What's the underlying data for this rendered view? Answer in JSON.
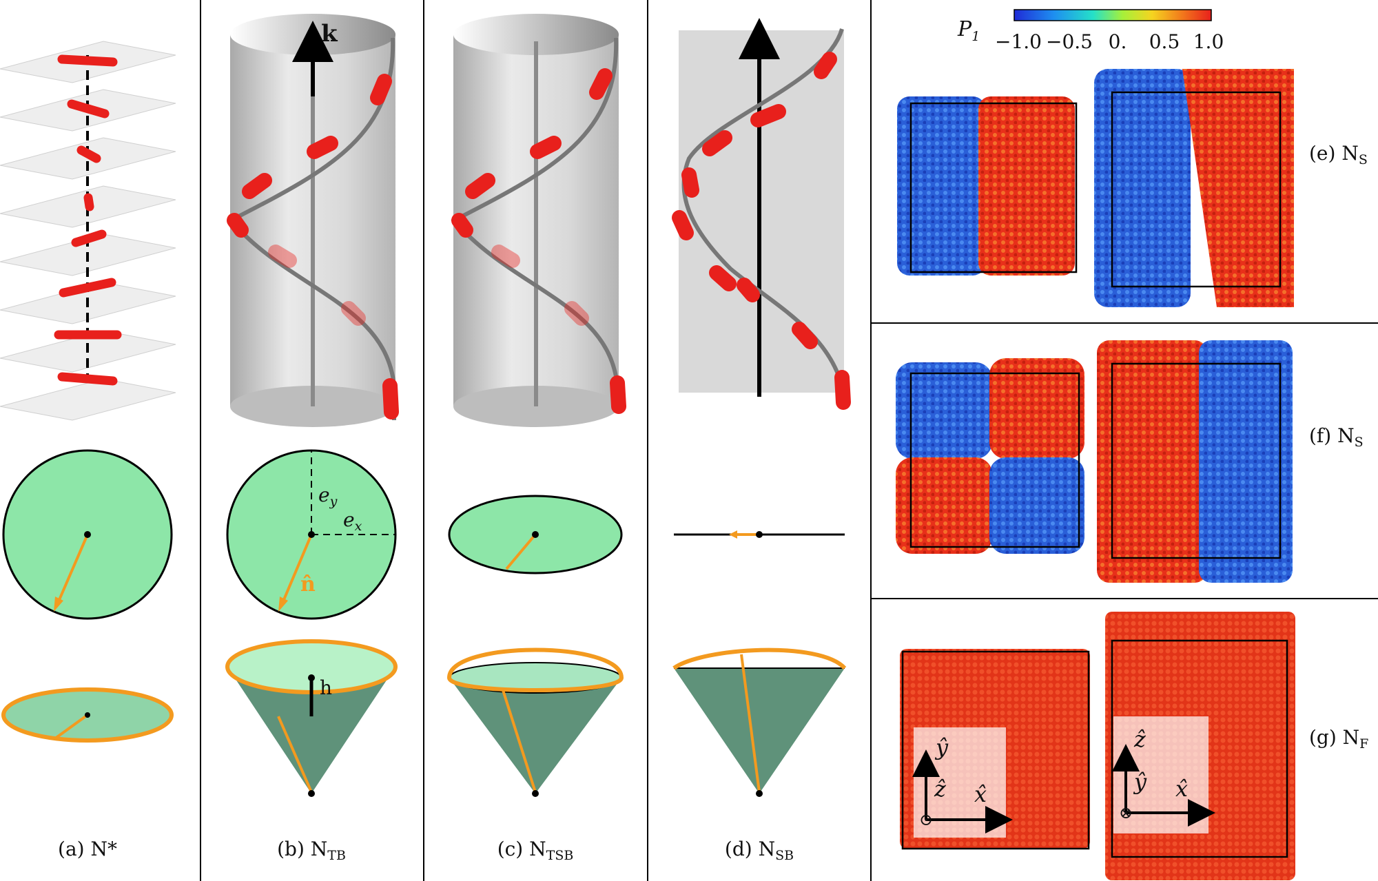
{
  "panels": {
    "a": {
      "caption": "(a) N*"
    },
    "b": {
      "caption_main": "(b) N",
      "caption_sub": "TB",
      "k_label": "k",
      "ey_label": "e",
      "ey_sub": "y",
      "ex_label": "e",
      "ex_sub": "x",
      "n_label": "n̂",
      "h_label": "h"
    },
    "c": {
      "caption_main": "(c) N",
      "caption_sub": "TSB"
    },
    "d": {
      "caption_main": "(d) N",
      "caption_sub": "SB"
    },
    "e": {
      "label_main": "(e) N",
      "label_sub": "S"
    },
    "f": {
      "label_main": "(f) N",
      "label_sub": "S"
    },
    "g": {
      "label_main": "(g) N",
      "label_sub": "F",
      "axes_left": {
        "y": "ŷ",
        "z": "ẑ",
        "x": "x̂",
        "z_symbol": "⊙"
      },
      "axes_right": {
        "z": "ẑ",
        "y": "ŷ",
        "x": "x̂",
        "y_symbol": "⊗"
      }
    }
  },
  "colorbar": {
    "label": "P",
    "label_sub": "1",
    "ticks": [
      "−1.0",
      "−0.5",
      "0.",
      "0.5",
      "1.0"
    ]
  },
  "colors": {
    "rod": "#e8201c",
    "disc": "#8de6a8",
    "cone": "#5f927a",
    "arrow": "#f39a1f",
    "blue_domain": "#2a5fd8",
    "red_domain": "#e83a1e"
  }
}
